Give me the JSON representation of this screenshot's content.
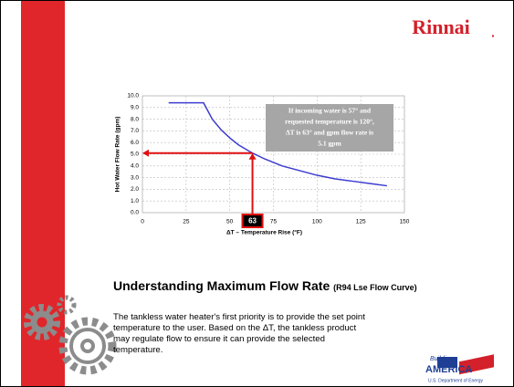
{
  "logo": {
    "brand": "Rinnai",
    "mark": "."
  },
  "chart_data": {
    "type": "line",
    "x": [
      15,
      20,
      25,
      30,
      35,
      40,
      45,
      50,
      55,
      63,
      70,
      80,
      90,
      100,
      110,
      120,
      130,
      140
    ],
    "series": [
      {
        "name": "Flow rate",
        "color": "#3c3cd0",
        "values": [
          9.4,
          9.4,
          9.4,
          9.4,
          9.4,
          8.0,
          7.1,
          6.4,
          5.8,
          5.1,
          4.6,
          4.0,
          3.6,
          3.2,
          2.9,
          2.7,
          2.5,
          2.3
        ]
      }
    ],
    "xlim": [
      0,
      150
    ],
    "xticks": [
      0,
      25,
      50,
      75,
      100,
      125,
      150
    ],
    "ylim": [
      0,
      10
    ],
    "yticks": [
      {
        "value": 0,
        "label": "0.0"
      },
      {
        "value": 1,
        "label": "1.0"
      },
      {
        "value": 2,
        "label": "2.0"
      },
      {
        "value": 3,
        "label": "3.0"
      },
      {
        "value": 4,
        "label": "4.0"
      },
      {
        "value": 5,
        "label": "5.0"
      },
      {
        "value": 6,
        "label": "6.0"
      },
      {
        "value": 7,
        "label": "7.0"
      },
      {
        "value": 8,
        "label": "8.0"
      },
      {
        "value": 9,
        "label": "9.0"
      },
      {
        "value": 10,
        "label": "10.0"
      }
    ],
    "grid": true,
    "ylabel": "Hot Water Flow Rate (gpm)",
    "xlabel": "ΔT – Temperature Rise (°F)",
    "marker": {
      "x": 63,
      "y": 5.1,
      "color": "#e01010"
    },
    "annotation": [
      "If incoming water is 57° and",
      "requested temperature is 120°,",
      "ΔT is 63° and gpm flow rate is",
      "5.1 gpm"
    ]
  },
  "heading": {
    "title": "Understanding Maximum Flow Rate",
    "subtitle": "(R94 Lse Flow Curve)"
  },
  "body": [
    "The tankless water heater's first priority is to provide the set point",
    "temperature to the user. Based on the ΔT, the tankless product",
    "may regulate flow to ensure it can provide the selected",
    "temperature."
  ],
  "footer_logo": {
    "top": "Building",
    "main": "AMERICA",
    "sub": "U.S. Department of Energy"
  }
}
